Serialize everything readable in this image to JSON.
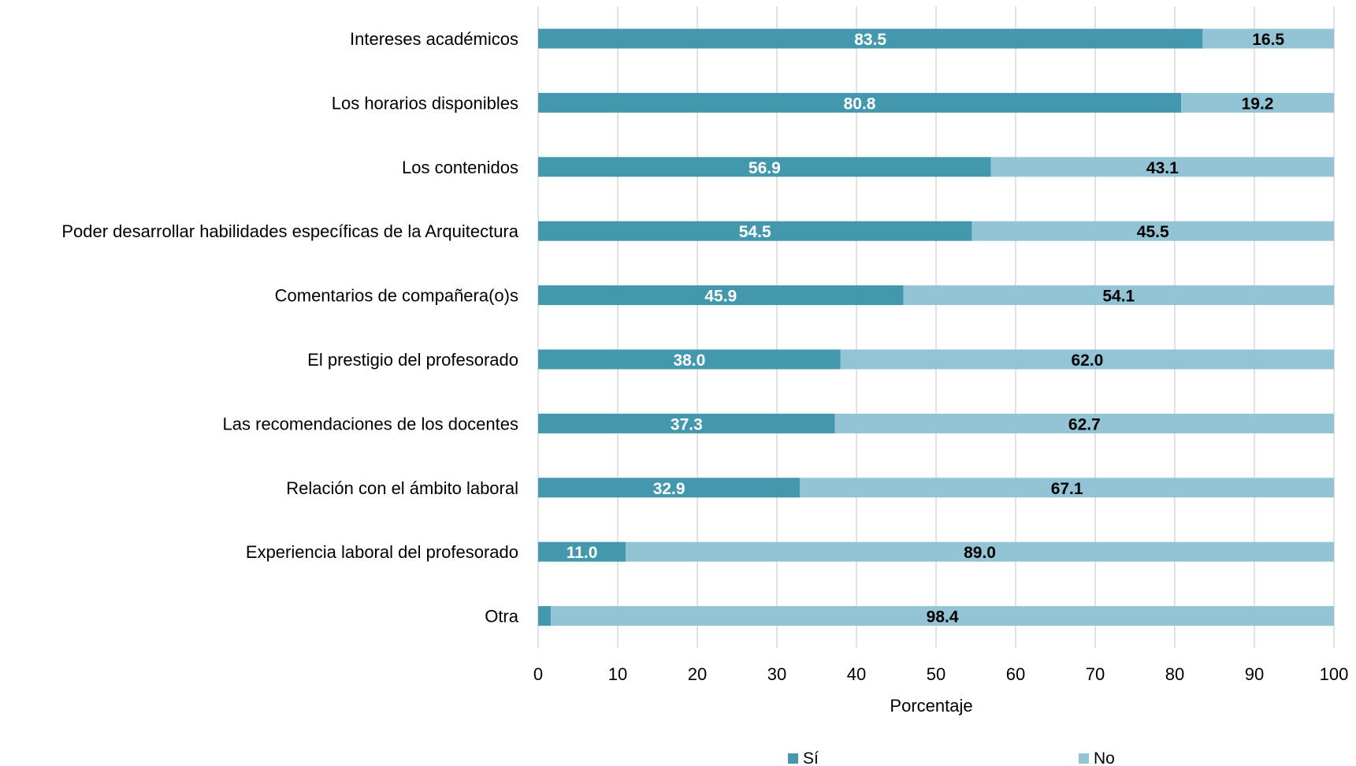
{
  "chart_data": {
    "type": "bar",
    "orientation": "horizontal",
    "stacked": true,
    "categories": [
      "Intereses académicos",
      "Los horarios disponibles",
      "Los contenidos",
      "Poder desarrollar habilidades específicas de la Arquitectura",
      "Comentarios de compañera(o)s",
      "El prestigio del profesorado",
      "Las recomendaciones de los docentes",
      "Relación con el ámbito laboral",
      "Experiencia laboral del profesorado",
      "Otra"
    ],
    "series": [
      {
        "name": "Sí",
        "color": "#4398ae",
        "values": [
          83.5,
          80.8,
          56.9,
          54.5,
          45.9,
          38.0,
          37.3,
          32.9,
          11.0,
          1.6
        ],
        "labels": [
          "83.5",
          "80.8",
          "56.9",
          "54.5",
          "45.9",
          "38.0",
          "37.3",
          "32.9",
          "11.0",
          ""
        ]
      },
      {
        "name": "No",
        "color": "#92c4d6",
        "values": [
          16.5,
          19.2,
          43.1,
          45.5,
          54.1,
          62.0,
          62.7,
          67.1,
          89.0,
          98.4
        ],
        "labels": [
          "16.5",
          "19.2",
          "43.1",
          "45.5",
          "54.1",
          "62.0",
          "62.7",
          "67.1",
          "89.0",
          "98.4"
        ]
      }
    ],
    "xlabel": "Porcentaje",
    "xlim": [
      0,
      100
    ],
    "xticks": [
      "0",
      "10",
      "20",
      "30",
      "40",
      "50",
      "60",
      "70",
      "80",
      "90",
      "100"
    ],
    "grid": "vertical",
    "legend_position": "bottom"
  }
}
